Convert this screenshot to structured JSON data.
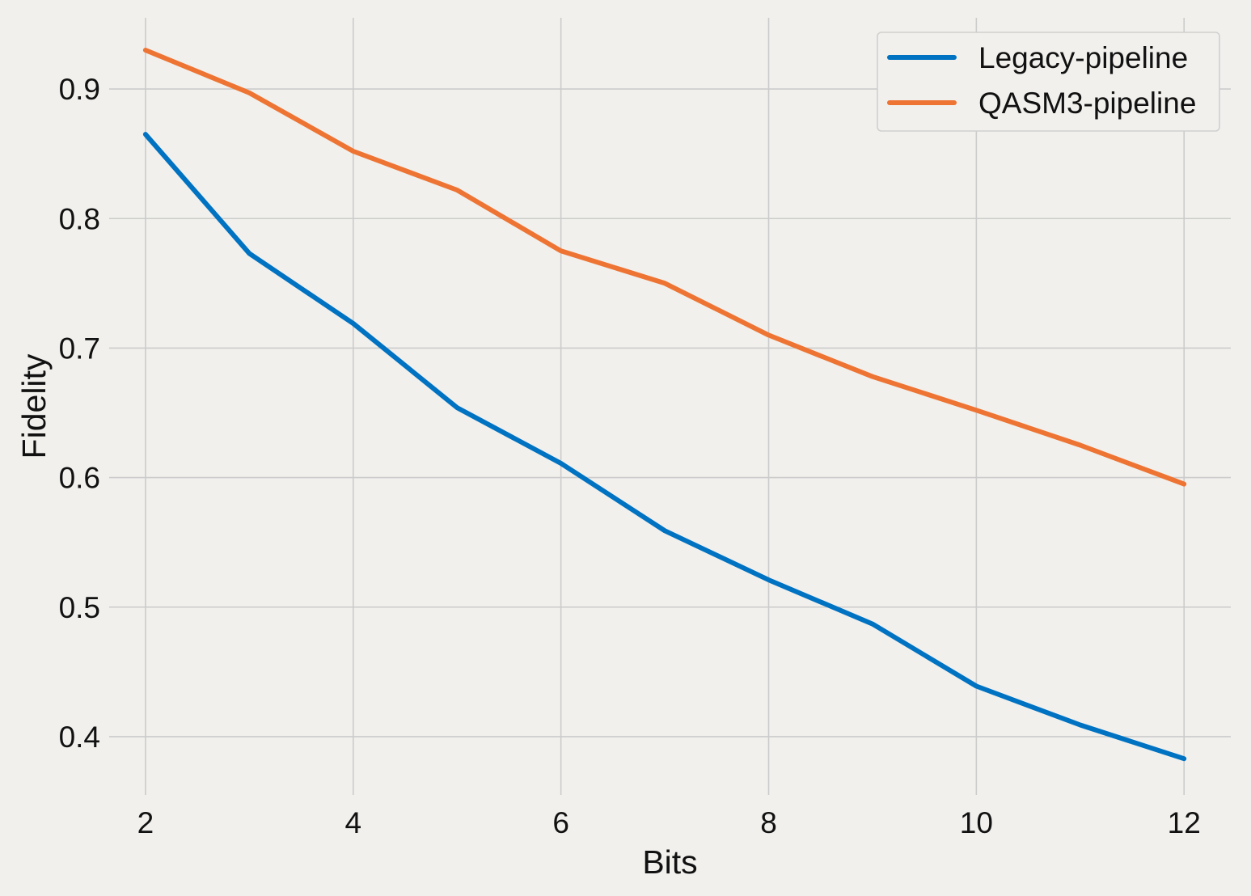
{
  "chart_data": {
    "type": "line",
    "title": "",
    "xlabel": "Bits",
    "ylabel": "Fidelity",
    "x": [
      2,
      3,
      4,
      5,
      6,
      7,
      8,
      9,
      10,
      11,
      12
    ],
    "xlim": [
      1.65,
      12.45
    ],
    "ylim": [
      0.355,
      0.955
    ],
    "xticks": [
      2,
      4,
      6,
      8,
      10,
      12
    ],
    "yticks": [
      0.4,
      0.5,
      0.6,
      0.7,
      0.8,
      0.9
    ],
    "ytick_labels": [
      "0.4",
      "0.5",
      "0.6",
      "0.7",
      "0.8",
      "0.9"
    ],
    "grid": true,
    "legend_position": "top-right",
    "background_color": "#f1f0ed",
    "series": [
      {
        "name": "Legacy-pipeline",
        "color": "#0072c2",
        "values": [
          0.865,
          0.773,
          0.719,
          0.654,
          0.611,
          0.559,
          0.521,
          0.487,
          0.439,
          0.409,
          0.383
        ]
      },
      {
        "name": "QASM3-pipeline",
        "color": "#ee7433",
        "values": [
          0.93,
          0.897,
          0.852,
          0.822,
          0.775,
          0.75,
          0.71,
          0.678,
          0.652,
          0.625,
          0.595
        ]
      }
    ]
  }
}
